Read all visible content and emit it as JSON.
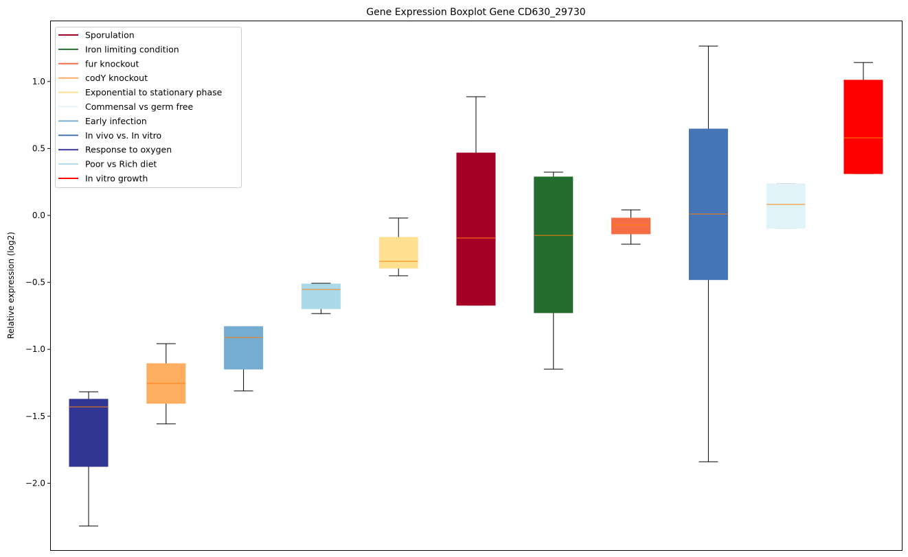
{
  "chart_data": {
    "type": "boxplot",
    "title": "Gene Expression Boxplot Gene CD630_29730",
    "xlabel": "",
    "ylabel": "Relative expression (log2)",
    "ylim": [
      -2.5,
      1.45
    ],
    "yticks": [
      1.0,
      0.5,
      0.0,
      -0.5,
      -1.0,
      -1.5,
      -2.0
    ],
    "ytick_labels": [
      "1.0",
      "0.5",
      "0.0",
      "−0.5",
      "−1.0",
      "−1.5",
      "−2.0"
    ],
    "grid": false,
    "legend_position": "top-left",
    "median_color": "#ff7f0e",
    "legend": [
      {
        "name": "Sporulation",
        "color": "#a50026"
      },
      {
        "name": "Iron limiting condition",
        "color": "#236e2e"
      },
      {
        "name": "fur knockout",
        "color": "#f46d43"
      },
      {
        "name": "codY knockout",
        "color": "#fdae61"
      },
      {
        "name": "Exponential to stationary phase",
        "color": "#fee090"
      },
      {
        "name": "Commensal vs germ free",
        "color": "#e0f3f8"
      },
      {
        "name": "Early infection",
        "color": "#74add1"
      },
      {
        "name": "In vivo vs. In vitro",
        "color": "#4575b4"
      },
      {
        "name": "Response to oxygen",
        "color": "#313695"
      },
      {
        "name": "Poor vs Rich diet",
        "color": "#abd9e9"
      },
      {
        "name": "In vitro growth",
        "color": "#ff0000"
      }
    ],
    "boxes": [
      {
        "group": "Response to oxygen",
        "color": "#313695",
        "whisker_low": -2.32,
        "q1": -1.875,
        "median": -1.43,
        "q3": -1.373,
        "whisker_high": -1.317
      },
      {
        "group": "codY knockout",
        "color": "#fdae61",
        "whisker_low": -1.557,
        "q1": -1.404,
        "median": -1.255,
        "q3": -1.107,
        "whisker_high": -0.958
      },
      {
        "group": "Early infection",
        "color": "#74add1",
        "whisker_low": -1.311,
        "q1": -1.148,
        "median": -0.912,
        "q3": -0.83,
        "whisker_high": -0.83
      },
      {
        "group": "Poor vs Rich diet",
        "color": "#abd9e9",
        "whisker_low": -0.733,
        "q1": -0.697,
        "median": -0.553,
        "q3": -0.512,
        "whisker_high": -0.507
      },
      {
        "group": "Exponential to stationary phase",
        "color": "#fee090",
        "whisker_low": -0.451,
        "q1": -0.394,
        "median": -0.343,
        "q3": -0.164,
        "whisker_high": -0.02
      },
      {
        "group": "Sporulation",
        "color": "#a50026",
        "whisker_low": -0.671,
        "q1": -0.671,
        "median": -0.169,
        "q3": 0.466,
        "whisker_high": 0.886
      },
      {
        "group": "Iron limiting condition",
        "color": "#236e2e",
        "whisker_low": -1.148,
        "q1": -0.727,
        "median": -0.149,
        "q3": 0.287,
        "whisker_high": 0.323
      },
      {
        "group": "fur knockout",
        "color": "#f46d43",
        "whisker_low": -0.215,
        "q1": -0.138,
        "median": -0.072,
        "q3": -0.02,
        "whisker_high": 0.041
      },
      {
        "group": "In vivo vs. In vitro",
        "color": "#4575b4",
        "whisker_low": -1.84,
        "q1": -0.48,
        "median": 0.01,
        "q3": 0.645,
        "whisker_high": 1.265
      },
      {
        "group": "Commensal vs germ free",
        "color": "#e0f3f8",
        "whisker_low": -0.097,
        "q1": -0.097,
        "median": 0.082,
        "q3": 0.236,
        "whisker_high": 0.236
      },
      {
        "group": "In vitro growth",
        "color": "#ff0000",
        "whisker_low": 0.312,
        "q1": 0.312,
        "median": 0.579,
        "q3": 1.01,
        "whisker_high": 1.142
      }
    ]
  }
}
